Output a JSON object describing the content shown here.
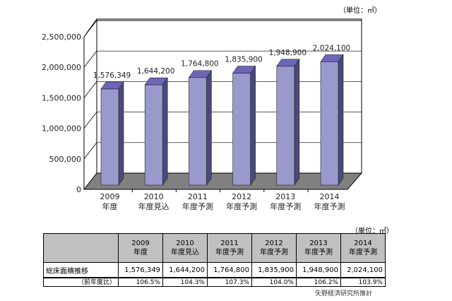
{
  "chart_data": {
    "type": "bar",
    "title": "",
    "unit_label": "（単位：㎡）",
    "categories": [
      [
        "2009",
        "年度"
      ],
      [
        "2010",
        "年度見込"
      ],
      [
        "2011",
        "年度予測"
      ],
      [
        "2012",
        "年度予測"
      ],
      [
        "2013",
        "年度予測"
      ],
      [
        "2014",
        "年度予測"
      ]
    ],
    "values": [
      1576349,
      1644200,
      1764800,
      1835900,
      1948900,
      2024100
    ],
    "value_labels": [
      "1,576,349",
      "1,644,200",
      "1,764,800",
      "1,835,900",
      "1,948,900",
      "2,024,100"
    ],
    "y_ticks": [
      "0",
      "500,000",
      "1,000,000",
      "1,500,000",
      "2,000,000",
      "2,500,000"
    ],
    "y_tick_values": [
      0,
      500000,
      1000000,
      1500000,
      2000000,
      2500000
    ],
    "ylim": [
      0,
      2500000
    ],
    "grid": true,
    "bar_color": "#9999cc",
    "bar_side_color": "#4a4a7a",
    "bar_top_color": "#6c66b8",
    "floor_color": "#808080"
  },
  "table": {
    "unit_label": "（単位：㎡）",
    "headers": [
      [
        "2009",
        "年度"
      ],
      [
        "2010",
        "年度見込"
      ],
      [
        "2011",
        "年度予測"
      ],
      [
        "2012",
        "年度予測"
      ],
      [
        "2013",
        "年度予測"
      ],
      [
        "2014",
        "年度予測"
      ]
    ],
    "row1_label": "総床面積推移",
    "row1": [
      "1,576,349",
      "1,644,200",
      "1,764,800",
      "1,835,900",
      "1,948,900",
      "2,024,100"
    ],
    "row2_label": "（前年度比）",
    "row2": [
      "106.5%",
      "104.3%",
      "107.3%",
      "104.0%",
      "106.2%",
      "103.9%"
    ]
  },
  "source": "矢野経済研究所推計"
}
